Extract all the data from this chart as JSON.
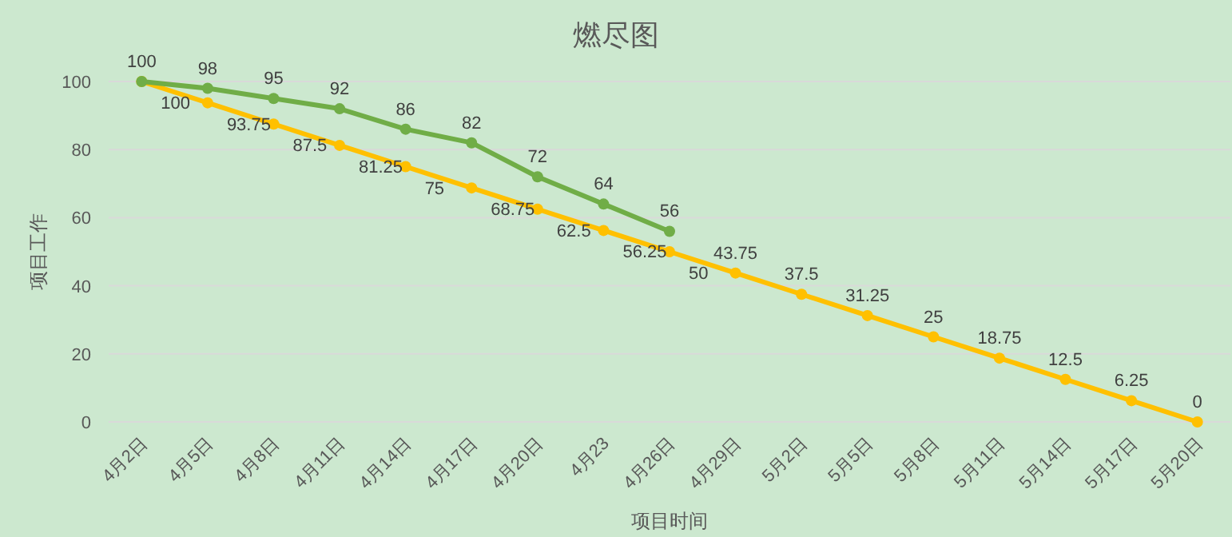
{
  "chart_data": {
    "type": "line",
    "title": "燃尽图",
    "xlabel": "项目时间",
    "ylabel": "项目工作",
    "categories": [
      "4月2日",
      "4月5日",
      "4月8日",
      "4月11日",
      "4月14日",
      "4月17日",
      "4月20日",
      "4月23",
      "4月26日",
      "4月29日",
      "5月2日",
      "5月5日",
      "5月8日",
      "5月11日",
      "5月14日",
      "5月17日",
      "5月20日"
    ],
    "series": [
      {
        "color": "#ffc000",
        "values": [
          100,
          93.75,
          87.5,
          81.25,
          75,
          68.75,
          62.5,
          56.25,
          50,
          43.75,
          37.5,
          31.25,
          25,
          18.75,
          12.5,
          6.25,
          0
        ]
      },
      {
        "color": "#70ad47",
        "values": [
          100,
          98,
          95,
          92,
          86,
          82,
          72,
          64,
          56,
          null,
          null,
          null,
          null,
          null,
          null,
          null,
          null
        ]
      }
    ],
    "ylim": [
      0,
      100
    ],
    "yticks": [
      0,
      20,
      40,
      60,
      80,
      100
    ],
    "grid": "y",
    "marker": "circle",
    "line_style": "solid",
    "data_labels": true
  }
}
